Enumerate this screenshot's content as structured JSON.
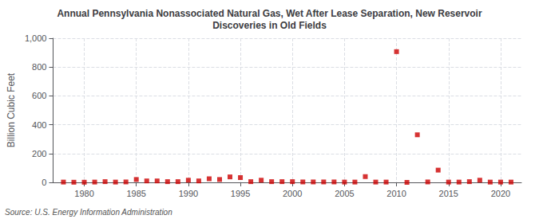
{
  "chart_data": {
    "type": "scatter",
    "title": "Annual Pennsylvania Nonassociated Natural Gas, Wet After Lease Separation, New Reservoir\nDiscoveries in Old Fields",
    "ylabel": "Billion Cubic Feet",
    "annotations": [
      "Source: U.S. Energy Information Administration"
    ],
    "x": [
      1978,
      1979,
      1980,
      1981,
      1982,
      1983,
      1984,
      1985,
      1986,
      1987,
      1988,
      1989,
      1990,
      1991,
      1992,
      1993,
      1994,
      1995,
      1996,
      1997,
      1998,
      1999,
      2000,
      2001,
      2002,
      2003,
      2004,
      2005,
      2006,
      2007,
      2008,
      2009,
      2010,
      2011,
      2012,
      2013,
      2014,
      2015,
      2016,
      2017,
      2018,
      2019,
      2020,
      2021
    ],
    "values": [
      2,
      1,
      1,
      2,
      5,
      2,
      3,
      20,
      10,
      10,
      5,
      5,
      15,
      10,
      25,
      20,
      38,
      33,
      5,
      15,
      5,
      5,
      5,
      3,
      3,
      3,
      3,
      2,
      2,
      40,
      2,
      2,
      907,
      0,
      330,
      3,
      85,
      2,
      2,
      5,
      15,
      2,
      2,
      2
    ],
    "color": "#cc0000",
    "marker": "square",
    "xlim": [
      1977,
      2022
    ],
    "ylim": [
      0,
      1000
    ],
    "xticks": [
      1980,
      1985,
      1990,
      1995,
      2000,
      2005,
      2010,
      2015,
      2020
    ],
    "yticks": [
      0,
      200,
      400,
      600,
      800,
      {
        "value": 1000,
        "label": "1,000"
      }
    ],
    "grid": true
  }
}
